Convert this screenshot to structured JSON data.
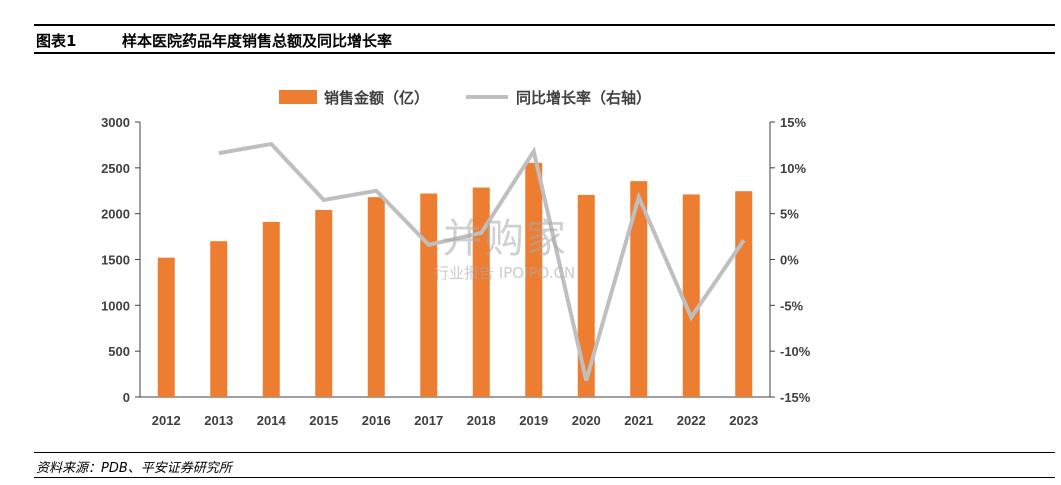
{
  "header": {
    "fig_label": "图表1",
    "title": "样本医院药品年度销售总额及同比增长率"
  },
  "footer": {
    "source": "资料来源：PDB、平安证券研究所"
  },
  "watermark": {
    "main": "并购家",
    "sub": "行业报告 IPOIPO.CN"
  },
  "colors": {
    "bar": "#ED7D31",
    "line": "#BFBFBF",
    "axis": "#404040"
  },
  "chart_data": {
    "type": "bar",
    "categories": [
      "2012",
      "2013",
      "2014",
      "2015",
      "2016",
      "2017",
      "2018",
      "2019",
      "2020",
      "2021",
      "2022",
      "2023"
    ],
    "series": [
      {
        "name": "销售金额（亿）",
        "type": "bar",
        "axis": "left",
        "values": [
          1520,
          1700,
          1910,
          2040,
          2180,
          2220,
          2285,
          2555,
          2205,
          2355,
          2210,
          2245
        ]
      },
      {
        "name": "同比增长率（右轴）",
        "type": "line",
        "axis": "right",
        "values": [
          null,
          11.6,
          12.6,
          6.5,
          7.5,
          1.6,
          2.9,
          11.8,
          -13.2,
          6.8,
          -6.3,
          2.1
        ]
      }
    ],
    "y_left": {
      "min": 0,
      "max": 3000,
      "ticks": [
        0,
        500,
        1000,
        1500,
        2000,
        2500,
        3000
      ],
      "tick_labels": [
        "0",
        "500",
        "1000",
        "1500",
        "2000",
        "2500",
        "3000"
      ]
    },
    "y_right": {
      "min": -15,
      "max": 15,
      "ticks": [
        -15,
        -10,
        -5,
        0,
        5,
        10,
        15
      ],
      "tick_labels": [
        "-15%",
        "-10%",
        "-5%",
        "0%",
        "5%",
        "10%",
        "15%"
      ]
    },
    "legend_position": "top-center",
    "grid": false
  }
}
